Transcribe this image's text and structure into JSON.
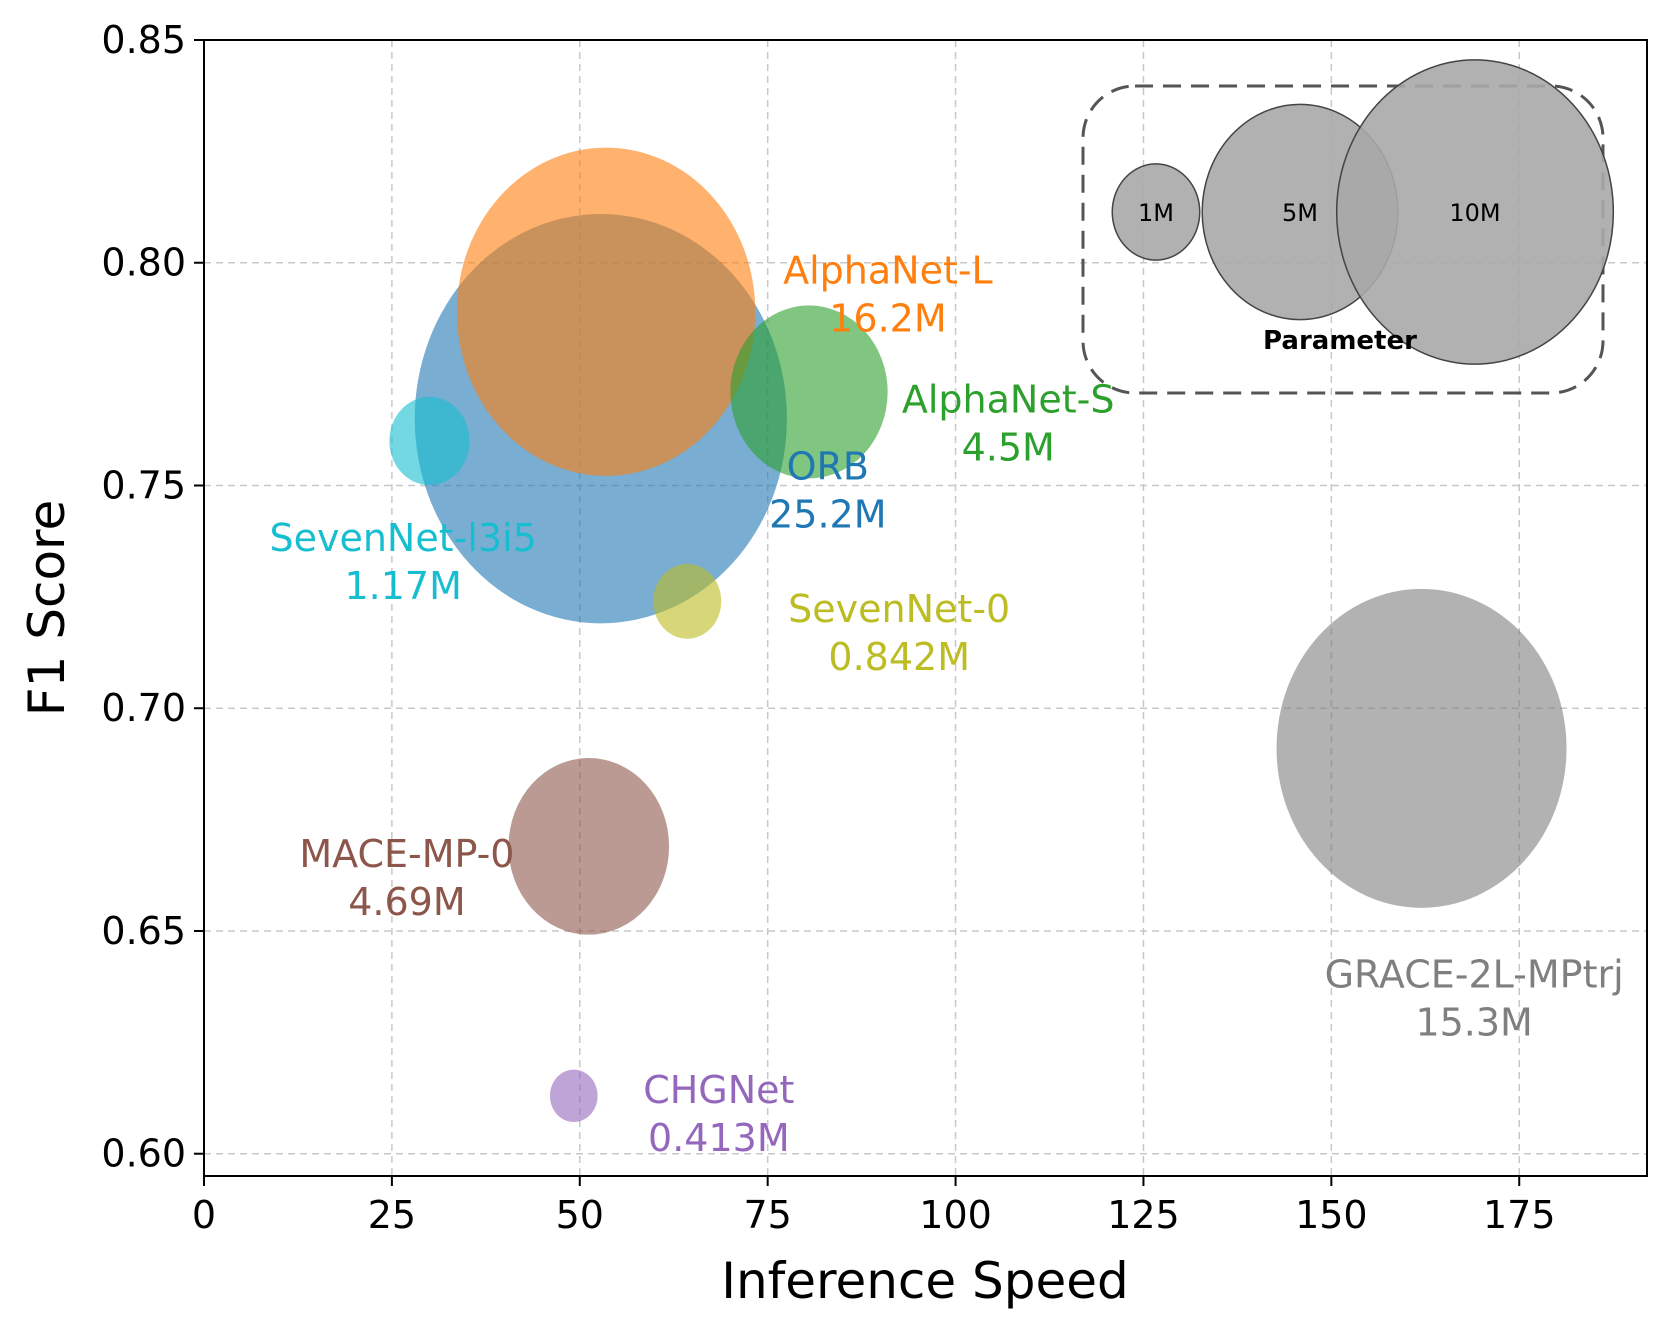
{
  "chart_data": {
    "type": "scatter",
    "xlabel": "Inference Speed",
    "ylabel": "F1 Score",
    "xlim": [
      0,
      192
    ],
    "ylim": [
      0.595,
      0.85
    ],
    "xticks": [
      0,
      25,
      50,
      75,
      100,
      125,
      150,
      175
    ],
    "yticks": [
      0.6,
      0.65,
      0.7,
      0.75,
      0.8,
      0.85
    ],
    "xtick_labels": [
      "0",
      "25",
      "50",
      "75",
      "100",
      "125",
      "150",
      "175"
    ],
    "ytick_labels": [
      "0.60",
      "0.65",
      "0.70",
      "0.75",
      "0.80",
      "0.85"
    ],
    "grid": true,
    "points": [
      {
        "name": "ORB",
        "params_label": "25.2M",
        "params": 25.2,
        "x": 52.8,
        "y": 0.765,
        "color": "#1f77b4",
        "label_x": 83,
        "label_y": 0.75
      },
      {
        "name": "AlphaNet-L",
        "params_label": "16.2M",
        "params": 16.2,
        "x": 53.5,
        "y": 0.789,
        "color": "#ff7f0e",
        "label_x": 91,
        "label_y": 0.794
      },
      {
        "name": "AlphaNet-S",
        "params_label": "4.5M",
        "params": 4.5,
        "x": 80.5,
        "y": 0.771,
        "color": "#2ca02c",
        "label_x": 107,
        "label_y": 0.765
      },
      {
        "name": "SevenNet-l3i5",
        "params_label": "1.17M",
        "params": 1.17,
        "x": 30.0,
        "y": 0.76,
        "color": "#17becf",
        "label_x": 26.5,
        "label_y": 0.734
      },
      {
        "name": "SevenNet-0",
        "params_label": "0.842M",
        "params": 0.842,
        "x": 64.3,
        "y": 0.724,
        "color": "#bcbd22",
        "label_x": 92.5,
        "label_y": 0.718
      },
      {
        "name": "MACE-MP-0",
        "params_label": "4.69M",
        "params": 4.69,
        "x": 51.2,
        "y": 0.669,
        "color": "#8c564b",
        "label_x": 27,
        "label_y": 0.663
      },
      {
        "name": "CHGNet",
        "params_label": "0.413M",
        "params": 0.413,
        "x": 49.2,
        "y": 0.613,
        "color": "#9467bd",
        "label_x": 68.5,
        "label_y": 0.61
      },
      {
        "name": "GRACE-2L-MPtrj",
        "params_label": "15.3M",
        "params": 15.3,
        "x": 162.0,
        "y": 0.691,
        "color": "#7f7f7f",
        "label_x": 169,
        "label_y": 0.636
      }
    ],
    "size_legend": {
      "title": "Parameter",
      "entries": [
        {
          "label": "1M",
          "params": 1
        },
        {
          "label": "5M",
          "params": 5
        },
        {
          "label": "10M",
          "params": 10
        }
      ]
    }
  }
}
